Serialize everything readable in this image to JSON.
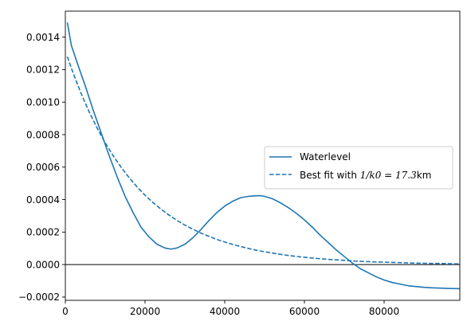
{
  "chart_data": {
    "type": "line",
    "xlim": [
      0,
      99000
    ],
    "ylim": [
      -0.00022,
      0.00156
    ],
    "x_ticks": [
      {
        "value": 0,
        "label": "0"
      },
      {
        "value": 20000,
        "label": "20000"
      },
      {
        "value": 40000,
        "label": "40000"
      },
      {
        "value": 60000,
        "label": "60000"
      },
      {
        "value": 80000,
        "label": "80000"
      }
    ],
    "y_ticks": [
      {
        "value": -0.0002,
        "label": "−0.0002"
      },
      {
        "value": 0.0,
        "label": "0.0000"
      },
      {
        "value": 0.0002,
        "label": "0.0002"
      },
      {
        "value": 0.0004,
        "label": "0.0004"
      },
      {
        "value": 0.0006,
        "label": "0.0006"
      },
      {
        "value": 0.0008,
        "label": "0.0008"
      },
      {
        "value": 0.001,
        "label": "0.0010"
      },
      {
        "value": 0.0012,
        "label": "0.0012"
      },
      {
        "value": 0.0014,
        "label": "0.0014"
      }
    ],
    "hline": {
      "y": 0,
      "color": "#000000"
    },
    "legend": {
      "position": "top-right"
    },
    "grid": false,
    "series": [
      {
        "name": "Waterlevel",
        "style": "solid",
        "color": "#1f77b4",
        "x": [
          500,
          1500,
          3000,
          5000,
          7000,
          9000,
          11000,
          13000,
          15000,
          17000,
          19000,
          21000,
          23000,
          25000,
          26500,
          28000,
          30000,
          32000,
          34000,
          36000,
          38000,
          40000,
          42000,
          44000,
          46000,
          48000,
          49000,
          50000,
          52000,
          54000,
          56000,
          58000,
          60000,
          62000,
          64000,
          66000,
          68000,
          70000,
          72000,
          74000,
          76000,
          78000,
          80000,
          82000,
          84000,
          86000,
          88000,
          90000,
          92000,
          94000,
          96000,
          98000,
          99000
        ],
        "y": [
          0.00149,
          0.00135,
          0.00124,
          0.0011,
          0.00095,
          0.00081,
          0.00067,
          0.00054,
          0.00042,
          0.00032,
          0.00023,
          0.00017,
          0.000125,
          0.000102,
          9.5e-05,
          0.000102,
          0.000125,
          0.000165,
          0.000215,
          0.00027,
          0.00032,
          0.00036,
          0.00039,
          0.000412,
          0.00042,
          0.000424,
          0.000424,
          0.00042,
          0.000405,
          0.00038,
          0.00035,
          0.000315,
          0.000275,
          0.00023,
          0.00018,
          0.000135,
          9e-05,
          5e-05,
          1e-05,
          -2.5e-05,
          -5e-05,
          -7.5e-05,
          -9.5e-05,
          -0.00011,
          -0.00012,
          -0.00013,
          -0.000135,
          -0.00014,
          -0.000143,
          -0.000145,
          -0.000147,
          -0.000148,
          -0.000148
        ]
      },
      {
        "name": "Best fit with $1/k0 = 17.3$km",
        "label_parts": {
          "prefix": "Best fit with ",
          "math": "1/k0 = 17.3",
          "suffix": "km"
        },
        "style": "dashed",
        "color": "#1f77b4",
        "x": [
          500,
          2000,
          4000,
          6000,
          8000,
          10000,
          12000,
          14000,
          16000,
          18000,
          20000,
          22000,
          24000,
          26000,
          28000,
          30000,
          32000,
          34000,
          36000,
          38000,
          40000,
          42000,
          44000,
          46000,
          48000,
          50000,
          52000,
          54000,
          56000,
          58000,
          60000,
          62000,
          64000,
          66000,
          68000,
          70000,
          72000,
          74000,
          76000,
          78000,
          80000,
          82000,
          84000,
          86000,
          88000,
          90000,
          92000,
          94000,
          96000,
          98000,
          99000
        ],
        "y": [
          0.00128,
          0.001176,
          0.001051,
          0.000939,
          0.000839,
          0.00075,
          0.00067,
          0.000599,
          0.000535,
          0.000478,
          0.000427,
          0.000382,
          0.000341,
          0.000305,
          0.000272,
          0.000243,
          0.000218,
          0.000194,
          0.000174,
          0.000155,
          0.000139,
          0.000124,
          0.000111,
          9.9e-05,
          8.8e-05,
          7.9e-05,
          7.1e-05,
          6.3e-05,
          5.6e-05,
          5e-05,
          4.5e-05,
          4e-05,
          3.6e-05,
          3.2e-05,
          2.9e-05,
          2.6e-05,
          2.3e-05,
          2e-05,
          1.8e-05,
          1.6e-05,
          1.5e-05,
          1.3e-05,
          1.2e-05,
          1e-05,
          9e-06,
          8e-06,
          7e-06,
          7e-06,
          6e-06,
          5e-06,
          5e-06
        ]
      }
    ]
  }
}
